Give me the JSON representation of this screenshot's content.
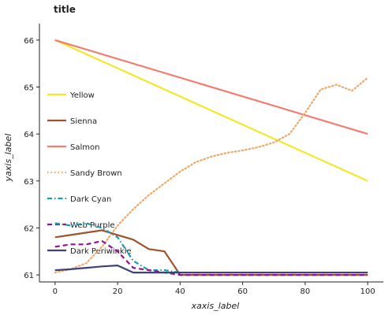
{
  "chart_data": {
    "type": "line",
    "title": "title",
    "xlabel": "xaxis_label",
    "ylabel": "yaxis_label",
    "xlim": [
      -5,
      105
    ],
    "ylim": [
      60.85,
      66.35
    ],
    "xticks": [
      0,
      20,
      40,
      60,
      80,
      100
    ],
    "yticks": [
      61,
      62,
      63,
      64,
      65,
      66
    ],
    "grid": false,
    "legend_position": "left",
    "series": [
      {
        "name": "Yellow",
        "color": "#f5e628",
        "dash": "solid",
        "x": [
          0,
          100
        ],
        "y": [
          66.0,
          63.0
        ]
      },
      {
        "name": "Salmon",
        "color": "#f47c6e",
        "dash": "solid",
        "x": [
          0,
          100
        ],
        "y": [
          66.0,
          64.0
        ]
      },
      {
        "name": "Sandy Brown",
        "color": "#f0a868",
        "dash": "dotted",
        "x": [
          0,
          5,
          10,
          15,
          20,
          25,
          30,
          35,
          40,
          45,
          50,
          55,
          60,
          65,
          70,
          75,
          80,
          85,
          90,
          95,
          100
        ],
        "y": [
          61.05,
          61.12,
          61.25,
          61.6,
          62.05,
          62.4,
          62.7,
          62.95,
          63.2,
          63.4,
          63.52,
          63.6,
          63.65,
          63.72,
          63.82,
          64.0,
          64.45,
          64.95,
          65.05,
          64.92,
          65.2
        ]
      },
      {
        "name": "Sienna",
        "color": "#a0522d",
        "dash": "solid",
        "x": [
          0,
          5,
          10,
          15,
          20,
          25,
          30,
          35,
          40,
          45,
          50,
          55,
          60,
          65,
          70,
          75,
          80,
          85,
          90,
          95,
          100
        ],
        "y": [
          61.8,
          61.85,
          61.9,
          61.95,
          61.85,
          61.75,
          61.55,
          61.5,
          61.0,
          61.0,
          61.0,
          61.0,
          61.0,
          61.0,
          61.0,
          61.0,
          61.0,
          61.0,
          61.0,
          61.0,
          61.0
        ]
      },
      {
        "name": "Dark Cyan",
        "color": "#1a9aae",
        "dash": "dashdot",
        "x": [
          0,
          5,
          10,
          15,
          20,
          25,
          30,
          35,
          40,
          45,
          50,
          55,
          60,
          65,
          70,
          75,
          80,
          85,
          90,
          95,
          100
        ],
        "y": [
          62.1,
          62.05,
          62.1,
          62.0,
          61.8,
          61.3,
          61.1,
          61.1,
          61.05,
          61.05,
          61.05,
          61.05,
          61.05,
          61.05,
          61.05,
          61.05,
          61.05,
          61.05,
          61.05,
          61.05,
          61.05
        ]
      },
      {
        "name": "Web Purple",
        "color": "#8e1199",
        "dash": "dashed",
        "x": [
          0,
          5,
          10,
          15,
          20,
          25,
          30,
          35,
          40,
          45,
          50,
          55,
          60,
          65,
          70,
          75,
          80,
          85,
          90,
          95,
          100
        ],
        "y": [
          61.6,
          61.65,
          61.65,
          61.72,
          61.5,
          61.15,
          61.1,
          61.05,
          61.0,
          61.0,
          61.0,
          61.0,
          61.0,
          61.0,
          61.0,
          61.0,
          61.0,
          61.0,
          61.0,
          61.0,
          61.0
        ]
      },
      {
        "name": "Dark Periwinkle",
        "color": "#3f4277",
        "dash": "solid",
        "x": [
          0,
          5,
          10,
          15,
          20,
          25,
          30,
          35,
          40,
          45,
          50,
          55,
          60,
          65,
          70,
          75,
          80,
          85,
          90,
          95,
          100
        ],
        "y": [
          61.1,
          61.12,
          61.15,
          61.18,
          61.2,
          61.05,
          61.05,
          61.05,
          61.05,
          61.05,
          61.05,
          61.05,
          61.05,
          61.05,
          61.05,
          61.05,
          61.05,
          61.05,
          61.05,
          61.05,
          61.05
        ]
      }
    ],
    "legend_order": [
      "Yellow",
      "Sienna",
      "Salmon",
      "Sandy Brown",
      "Dark Cyan",
      "Web Purple",
      "Dark Periwinkle"
    ]
  }
}
